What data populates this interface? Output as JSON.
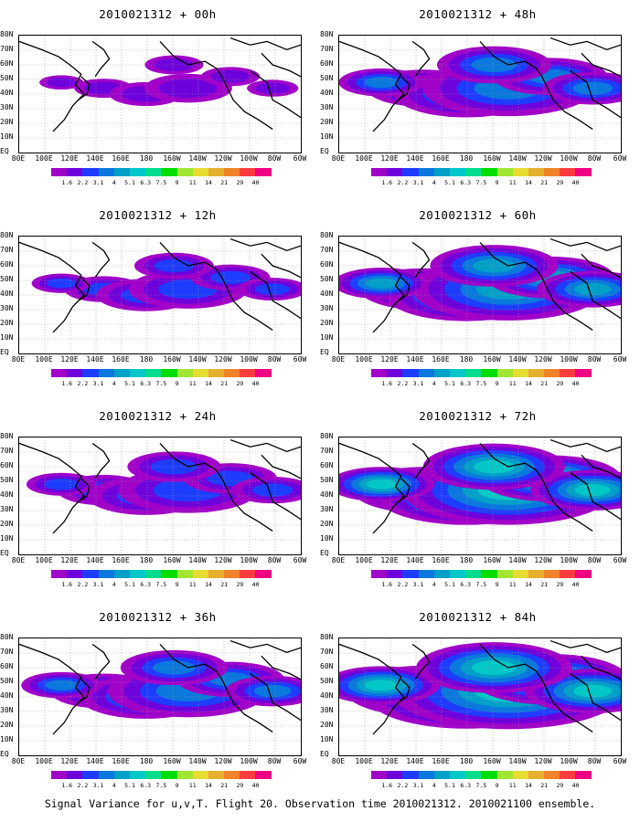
{
  "panels": [
    {
      "title": "2010021312 + 00h",
      "level": 0.15
    },
    {
      "title": "2010021312 + 48h",
      "level": 0.55
    },
    {
      "title": "2010021312 + 12h",
      "level": 0.3
    },
    {
      "title": "2010021312 + 60h",
      "level": 0.65
    },
    {
      "title": "2010021312 + 24h",
      "level": 0.4
    },
    {
      "title": "2010021312 + 72h",
      "level": 0.75
    },
    {
      "title": "2010021312 + 36h",
      "level": 0.5
    },
    {
      "title": "2010021312 + 84h",
      "level": 0.85
    }
  ],
  "latitude_labels": [
    "80N",
    "70N",
    "60N",
    "50N",
    "40N",
    "30N",
    "20N",
    "10N",
    "EQ"
  ],
  "longitude_labels": [
    "80E",
    "100E",
    "120E",
    "140E",
    "160E",
    "180",
    "160W",
    "140W",
    "120W",
    "100W",
    "80W",
    "60W"
  ],
  "colorbar": {
    "labels": [
      "1.6",
      "2.2",
      "3.1",
      "4",
      "5.1",
      "6.3",
      "7.5",
      "9",
      "11",
      "14",
      "21",
      "29",
      "40"
    ],
    "colors": [
      "#a000c8",
      "#6e00dc",
      "#1e3cff",
      "#0a78dc",
      "#00a0c8",
      "#00c8c8",
      "#00dc8c",
      "#00dc00",
      "#a0e632",
      "#e6dc32",
      "#e6af2d",
      "#f08228",
      "#fa3c3c",
      "#f00082"
    ]
  },
  "caption": "Signal Variance for u,v,T. Flight 20. Observation time 2010021312. 2010021100 ensemble."
}
